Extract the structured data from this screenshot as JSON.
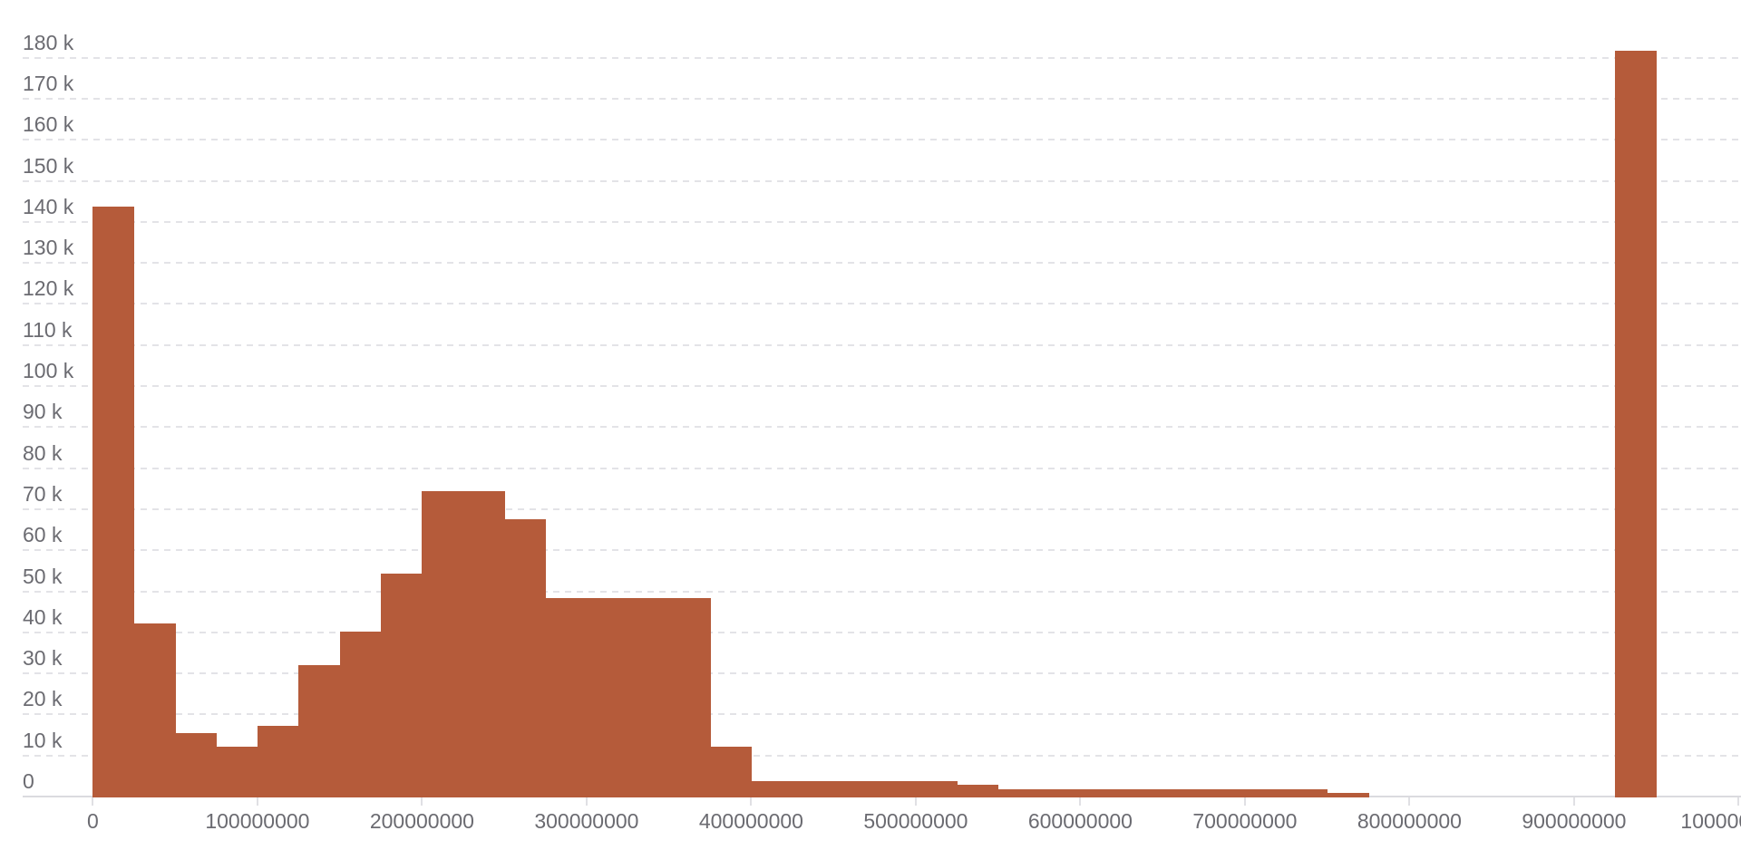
{
  "chart_data": {
    "type": "bar",
    "subtype": "histogram",
    "title": "",
    "xlabel": "",
    "ylabel": "",
    "legend": "none",
    "grid": "horizontal-dashed",
    "x_bin_start": 0,
    "x_bin_width": 25000000,
    "counts": [
      143700,
      42200,
      15400,
      12100,
      17200,
      32000,
      40200,
      54300,
      74300,
      74300,
      67500,
      48300,
      48300,
      48300,
      48300,
      12100,
      3700,
      3700,
      3700,
      3700,
      3700,
      2900,
      1800,
      1800,
      1800,
      1800,
      1800,
      1800,
      1800,
      1800,
      900,
      0,
      0,
      0,
      0,
      0,
      0,
      181600,
      0,
      0
    ],
    "x_ticks": [
      {
        "value": 0,
        "label": "0"
      },
      {
        "value": 100000000,
        "label": "100000000"
      },
      {
        "value": 200000000,
        "label": "200000000"
      },
      {
        "value": 300000000,
        "label": "300000000"
      },
      {
        "value": 400000000,
        "label": "400000000"
      },
      {
        "value": 500000000,
        "label": "500000000"
      },
      {
        "value": 600000000,
        "label": "600000000"
      },
      {
        "value": 700000000,
        "label": "700000000"
      },
      {
        "value": 800000000,
        "label": "800000000"
      },
      {
        "value": 900000000,
        "label": "900000000"
      },
      {
        "value": 1000000000,
        "label": "1000000000"
      }
    ],
    "y_ticks": [
      {
        "value": 0,
        "label": "0"
      },
      {
        "value": 10000,
        "label": "10 k"
      },
      {
        "value": 20000,
        "label": "20 k"
      },
      {
        "value": 30000,
        "label": "30 k"
      },
      {
        "value": 40000,
        "label": "40 k"
      },
      {
        "value": 50000,
        "label": "50 k"
      },
      {
        "value": 60000,
        "label": "60 k"
      },
      {
        "value": 70000,
        "label": "70 k"
      },
      {
        "value": 80000,
        "label": "80 k"
      },
      {
        "value": 90000,
        "label": "90 k"
      },
      {
        "value": 100000,
        "label": "100 k"
      },
      {
        "value": 110000,
        "label": "110 k"
      },
      {
        "value": 120000,
        "label": "120 k"
      },
      {
        "value": 130000,
        "label": "130 k"
      },
      {
        "value": 140000,
        "label": "140 k"
      },
      {
        "value": 150000,
        "label": "150 k"
      },
      {
        "value": 160000,
        "label": "160 k"
      },
      {
        "value": 170000,
        "label": "170 k"
      },
      {
        "value": 180000,
        "label": "180 k"
      }
    ],
    "xlim": [
      0,
      1001000000
    ],
    "ylim": [
      0,
      185000
    ],
    "colors": {
      "bar": "#b55b3a",
      "grid_line": "#e3e3e7",
      "axis_line": "#dbdbdf",
      "tick_mark": "#e0e0e4",
      "tick_label": "#6b6b71",
      "background": "#ffffff"
    }
  }
}
